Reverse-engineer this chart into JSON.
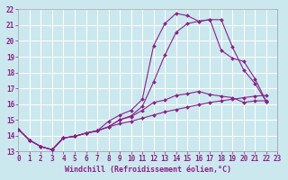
{
  "xlabel": "Windchill (Refroidissement éolien,°C)",
  "background_color": "#cce8ef",
  "line_color": "#882288",
  "grid_color": "#ffffff",
  "xmin": 0,
  "xmax": 23,
  "ymin": 13,
  "ymax": 22,
  "lines": [
    {
      "x": [
        0,
        1,
        2,
        3,
        4,
        5,
        6,
        7,
        8,
        9,
        10,
        11,
        12,
        13,
        14,
        15,
        16,
        17,
        18,
        19,
        20,
        21,
        22
      ],
      "y": [
        14.4,
        13.7,
        13.3,
        13.1,
        13.85,
        13.95,
        14.15,
        14.3,
        14.9,
        15.3,
        15.6,
        16.3,
        19.7,
        21.1,
        21.75,
        21.6,
        21.25,
        21.35,
        21.35,
        19.6,
        18.15,
        17.3,
        16.15
      ]
    },
    {
      "x": [
        0,
        1,
        2,
        3,
        4,
        5,
        6,
        7,
        8,
        9,
        10,
        11,
        12,
        13,
        14,
        15,
        16,
        17,
        18,
        19,
        20,
        21,
        22
      ],
      "y": [
        14.4,
        13.7,
        13.3,
        13.1,
        13.85,
        13.95,
        14.15,
        14.3,
        14.55,
        15.0,
        15.25,
        15.85,
        17.4,
        19.1,
        20.55,
        21.1,
        21.25,
        21.35,
        19.4,
        18.9,
        18.7,
        17.6,
        16.15
      ]
    },
    {
      "x": [
        0,
        1,
        2,
        3,
        4,
        5,
        6,
        7,
        8,
        9,
        10,
        11,
        12,
        13,
        14,
        15,
        16,
        17,
        18,
        19,
        20,
        21,
        22
      ],
      "y": [
        14.4,
        13.7,
        13.3,
        13.1,
        13.85,
        13.95,
        14.15,
        14.3,
        14.55,
        15.0,
        15.2,
        15.6,
        16.1,
        16.25,
        16.55,
        16.65,
        16.8,
        16.6,
        16.5,
        16.4,
        16.1,
        16.2,
        16.2
      ]
    },
    {
      "x": [
        0,
        1,
        2,
        3,
        4,
        5,
        6,
        7,
        8,
        9,
        10,
        11,
        12,
        13,
        14,
        15,
        16,
        17,
        18,
        19,
        20,
        21,
        22
      ],
      "y": [
        14.4,
        13.7,
        13.3,
        13.1,
        13.85,
        13.95,
        14.15,
        14.3,
        14.55,
        14.75,
        14.9,
        15.1,
        15.3,
        15.5,
        15.65,
        15.8,
        15.95,
        16.1,
        16.2,
        16.3,
        16.4,
        16.5,
        16.55
      ]
    }
  ],
  "xtick_labels": [
    "0",
    "1",
    "2",
    "3",
    "4",
    "5",
    "6",
    "7",
    "8",
    "9",
    "10",
    "11",
    "12",
    "13",
    "14",
    "15",
    "16",
    "17",
    "18",
    "19",
    "20",
    "21",
    "22",
    "23"
  ],
  "xticks": [
    0,
    1,
    2,
    3,
    4,
    5,
    6,
    7,
    8,
    9,
    10,
    11,
    12,
    13,
    14,
    15,
    16,
    17,
    18,
    19,
    20,
    21,
    22,
    23
  ],
  "yticks": [
    13,
    14,
    15,
    16,
    17,
    18,
    19,
    20,
    21,
    22
  ],
  "tick_fontsize": 5.5,
  "label_fontsize": 6.0,
  "marker": "D",
  "markersize": 2.0
}
